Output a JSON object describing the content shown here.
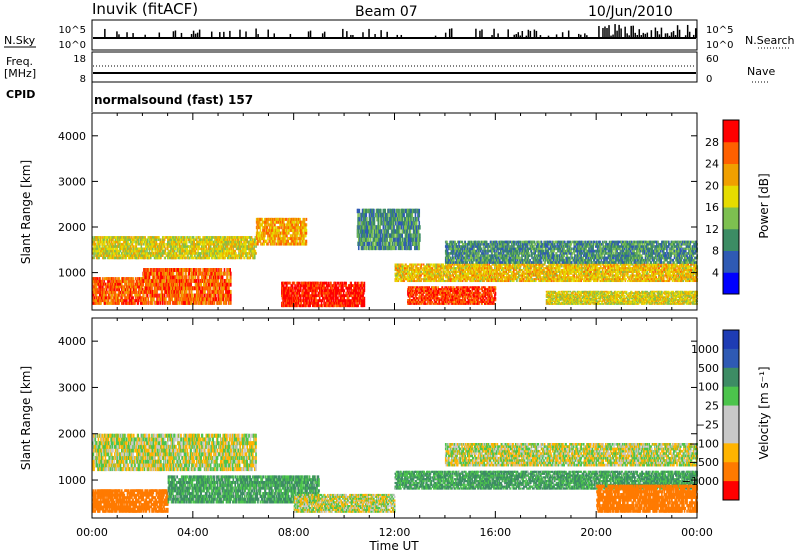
{
  "header": {
    "station": "Inuvik (fitACF)",
    "beam": "Beam 07",
    "date": "10/Jun/2010"
  },
  "top_panels": {
    "nsky_label": "N.Sky",
    "nsky_ticks": [
      "10^5",
      "10^0"
    ],
    "nsearch_label": "N.Search",
    "nsearch_ticks": [
      "10^5",
      "10^0"
    ],
    "freq_label_1": "Freq.",
    "freq_label_2": "[MHz]",
    "freq_ticks": [
      "18",
      "8"
    ],
    "nave_label": "Nave",
    "nave_ticks": [
      "60",
      "0"
    ],
    "cpid_label": "CPID",
    "cpid_text": "normalsound (fast) 157"
  },
  "colors": {
    "power": [
      "#0000ff",
      "#2f5ab4",
      "#3c8c64",
      "#7dc050",
      "#e6dc00",
      "#f0a000",
      "#ff6000",
      "#ff0000"
    ],
    "velocity": [
      "#ff0000",
      "#ff7a00",
      "#ffb400",
      "#c8c8c8",
      "#c8c8c8",
      "#4cc44c",
      "#3d8c64",
      "#2f5ab4",
      "#1e3cb4"
    ],
    "gray": "#c8c8c8"
  },
  "chart_data": [
    {
      "type": "heatmap",
      "panel": "power",
      "x_ticks": [
        "00:00",
        "04:00",
        "08:00",
        "12:00",
        "16:00",
        "20:00",
        "00:00"
      ],
      "xlim_hours": [
        0,
        24
      ],
      "ylabel": "Slant Range [km]",
      "y_ticks": [
        "1000",
        "2000",
        "3000",
        "4000"
      ],
      "ylim": [
        180,
        4500
      ],
      "colorbar_label": "Power [dB]",
      "colorbar_ticks": [
        "4",
        "8",
        "12",
        "16",
        "20",
        "24",
        "28"
      ],
      "colorbar_range": [
        0,
        32
      ],
      "echo_bands": [
        {
          "t0": 0.0,
          "t1": 2.0,
          "r0": 300,
          "r1": 900,
          "dB": 26
        },
        {
          "t0": 2.0,
          "t1": 5.5,
          "r0": 300,
          "r1": 1100,
          "dB": 26
        },
        {
          "t0": 0.0,
          "t1": 6.5,
          "r0": 1300,
          "r1": 1800,
          "dB": 18
        },
        {
          "t0": 6.5,
          "t1": 8.5,
          "r0": 1600,
          "r1": 2200,
          "dB": 22
        },
        {
          "t0": 7.5,
          "t1": 10.8,
          "r0": 250,
          "r1": 800,
          "dB": 30
        },
        {
          "t0": 10.5,
          "t1": 13.0,
          "r0": 1500,
          "r1": 2400,
          "dB": 10
        },
        {
          "t0": 12.5,
          "t1": 16.0,
          "r0": 300,
          "r1": 700,
          "dB": 28
        },
        {
          "t0": 12.0,
          "t1": 24.0,
          "r0": 800,
          "r1": 1200,
          "dB": 20
        },
        {
          "t0": 14.0,
          "t1": 24.0,
          "r0": 1200,
          "r1": 1700,
          "dB": 10
        },
        {
          "t0": 18.0,
          "t1": 24.0,
          "r0": 300,
          "r1": 600,
          "dB": 18
        }
      ]
    },
    {
      "type": "heatmap",
      "panel": "velocity",
      "x_ticks": [
        "00:00",
        "04:00",
        "08:00",
        "12:00",
        "16:00",
        "20:00",
        "00:00"
      ],
      "xlim_hours": [
        0,
        24
      ],
      "xlabel": "Time UT",
      "ylabel": "Slant Range [km]",
      "y_ticks": [
        "1000",
        "2000",
        "3000",
        "4000"
      ],
      "ylim": [
        180,
        4500
      ],
      "colorbar_label": "Velocity [m s⁻¹]",
      "colorbar_ticks": [
        "1000",
        "500",
        "100",
        "25",
        "−25",
        "−100",
        "−500",
        "−1000"
      ],
      "echo_bands": [
        {
          "t0": 0.0,
          "t1": 6.5,
          "r0": 1200,
          "r1": 2000,
          "v": 0
        },
        {
          "t0": 0.0,
          "t1": 3.0,
          "r0": 300,
          "r1": 800,
          "v": -300
        },
        {
          "t0": 3.0,
          "t1": 9.0,
          "r0": 500,
          "r1": 1100,
          "v": 120
        },
        {
          "t0": 8.0,
          "t1": 12.0,
          "r0": 300,
          "r1": 700,
          "v": 0
        },
        {
          "t0": 12.0,
          "t1": 24.0,
          "r0": 800,
          "r1": 1200,
          "v": 120
        },
        {
          "t0": 14.0,
          "t1": 24.0,
          "r0": 1300,
          "r1": 1800,
          "v": 0
        },
        {
          "t0": 20.0,
          "t1": 24.0,
          "r0": 300,
          "r1": 900,
          "v": -200
        }
      ]
    }
  ]
}
